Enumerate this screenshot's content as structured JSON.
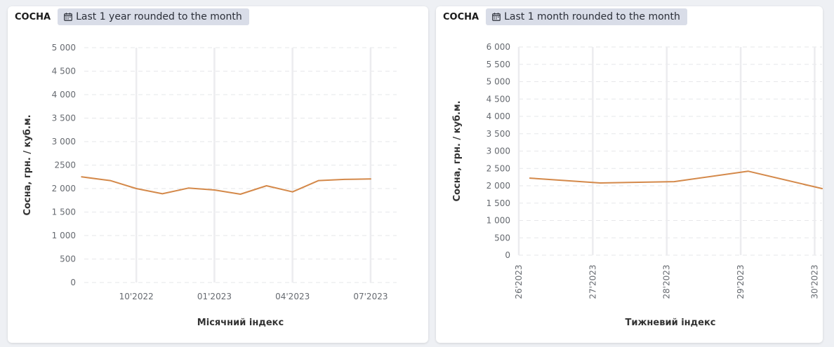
{
  "panels": [
    {
      "title": "СОСНА",
      "time_range": "Last 1 year rounded to the month",
      "time_icon": "calendar-icon"
    },
    {
      "title": "СОСНА",
      "time_range": "Last 1 month rounded to the month",
      "time_icon": "calendar-icon"
    }
  ],
  "colors": {
    "series": "#d4894a",
    "badge_bg": "#d9dde8"
  },
  "chart_data": [
    {
      "type": "line",
      "ylabel": "Сосна, грн. / куб.м.",
      "xlabel": "Місячний індекс",
      "ylim": [
        0,
        5000
      ],
      "yticks": [
        0,
        500,
        1000,
        1500,
        2000,
        2500,
        3000,
        3500,
        4000,
        4500,
        5000
      ],
      "ytick_labels": [
        "0",
        "500",
        "1 000",
        "1 500",
        "2 000",
        "2500",
        "3 000",
        "3 500",
        "4 000",
        "4 500",
        "5 000"
      ],
      "xticks": [
        "10'2022",
        "01'2023",
        "04'2023",
        "07'2023"
      ],
      "xtick_positions": [
        3,
        6,
        9,
        12
      ],
      "x": [
        0.9,
        2,
        3,
        4,
        5,
        6,
        7,
        8,
        9,
        10,
        11,
        12
      ],
      "xlim": [
        1,
        13
      ],
      "values": [
        2250,
        2170,
        2000,
        1890,
        2010,
        1970,
        1880,
        2060,
        1930,
        2170,
        2195,
        2205
      ],
      "grid": true,
      "legend": "none"
    },
    {
      "type": "line",
      "ylabel": "Сосна, грн. / куб.м.",
      "xlabel": "Тижневий індекс",
      "ylim": [
        0,
        6000
      ],
      "yticks": [
        0,
        500,
        1000,
        1500,
        2000,
        2500,
        3000,
        3500,
        4000,
        4500,
        5000,
        5500,
        6000
      ],
      "ytick_labels": [
        "0",
        "500",
        "1 000",
        "1 500",
        "2 000",
        "2 500",
        "3 000",
        "3 500",
        "4 000",
        "4 500",
        "5 000",
        "5 500",
        "6 000"
      ],
      "xticks": [
        "26'2023",
        "27'2023",
        "28'2023",
        "29'2023",
        "30'2023"
      ],
      "xtick_positions": [
        26,
        27,
        28,
        29,
        30
      ],
      "x": [
        26.15,
        27.1,
        28.1,
        29.1,
        30.1
      ],
      "xlim": [
        26,
        30.1
      ],
      "values": [
        2220,
        2080,
        2120,
        2420,
        1920
      ],
      "grid": true,
      "legend": "none"
    }
  ]
}
